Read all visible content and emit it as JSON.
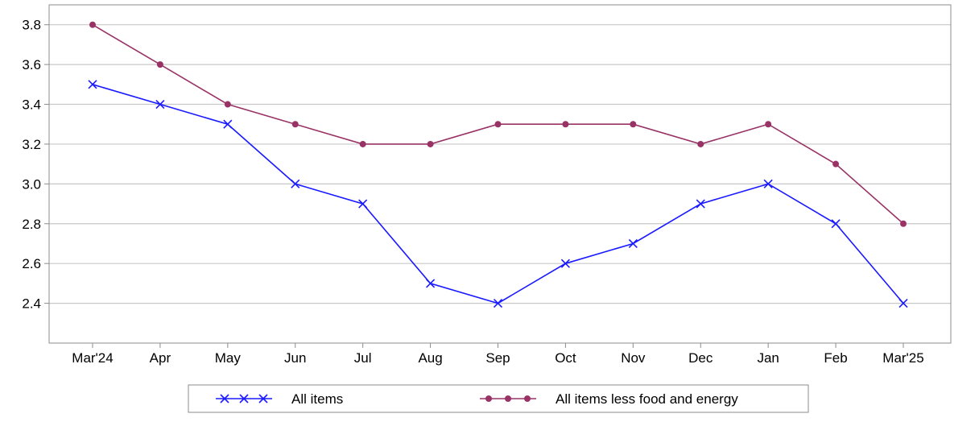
{
  "chart_data": {
    "type": "line",
    "categories": [
      "Mar'24",
      "Apr",
      "May",
      "Jun",
      "Jul",
      "Aug",
      "Sep",
      "Oct",
      "Nov",
      "Dec",
      "Jan",
      "Feb",
      "Mar'25"
    ],
    "ylim": [
      2.2,
      3.9
    ],
    "yticks": [
      2.4,
      2.6,
      2.8,
      3.0,
      3.2,
      3.4,
      3.6,
      3.8
    ],
    "ytick_labels": [
      "2.4",
      "2.6",
      "2.8",
      "3.0",
      "3.2",
      "3.4",
      "3.6",
      "3.8"
    ],
    "grid": "horizontal",
    "legend_position": "bottom",
    "series": [
      {
        "name": "All items",
        "color": "#1a1aff",
        "marker": "x",
        "values": [
          3.5,
          3.4,
          3.3,
          3.0,
          2.9,
          2.5,
          2.4,
          2.6,
          2.7,
          2.9,
          3.0,
          2.8,
          2.4
        ]
      },
      {
        "name": "All items less food and energy",
        "color": "#993366",
        "marker": "circle",
        "values": [
          3.8,
          3.6,
          3.4,
          3.3,
          3.2,
          3.2,
          3.3,
          3.3,
          3.3,
          3.2,
          3.3,
          3.1,
          2.8
        ]
      }
    ]
  }
}
